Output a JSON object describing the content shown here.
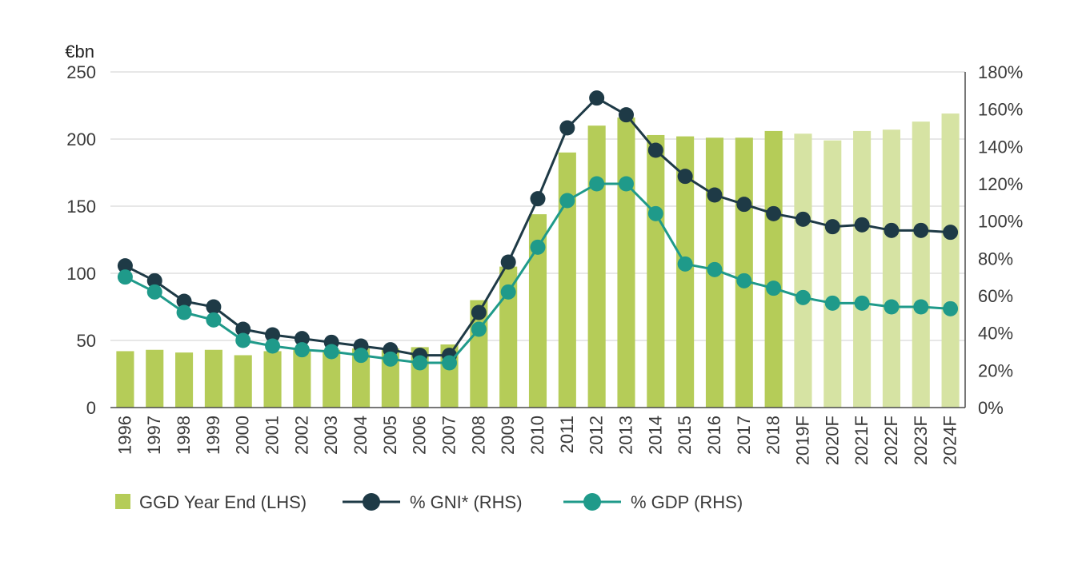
{
  "chart_data": {
    "type": "bar",
    "y_left_unit": "€bn",
    "categories": [
      "1996",
      "1997",
      "1998",
      "1999",
      "2000",
      "2001",
      "2002",
      "2003",
      "2004",
      "2005",
      "2006",
      "2007",
      "2008",
      "2009",
      "2010",
      "2011",
      "2012",
      "2013",
      "2014",
      "2015",
      "2016",
      "2017",
      "2018",
      "2019F",
      "2020F",
      "2021F",
      "2022F",
      "2023F",
      "2024F"
    ],
    "forecast_from_index": 23,
    "y_left": {
      "min": 0,
      "max": 250,
      "ticks": [
        0,
        50,
        100,
        150,
        200,
        250
      ]
    },
    "y_right": {
      "min": 0,
      "max": 180,
      "ticks": [
        0,
        20,
        40,
        60,
        80,
        100,
        120,
        140,
        160,
        180
      ],
      "tick_labels": [
        "0%",
        "20%",
        "40%",
        "60%",
        "80%",
        "100%",
        "120%",
        "140%",
        "160%",
        "180%"
      ]
    },
    "grid": true,
    "legend_position": "bottom-left",
    "series": [
      {
        "name": "GGD Year End (LHS)",
        "type": "bar",
        "axis": "left",
        "color": "#b5cc58",
        "forecast_color": "#d6e3a3",
        "values": [
          42,
          43,
          41,
          43,
          39,
          42,
          43,
          43,
          44,
          44,
          45,
          47,
          80,
          105,
          144,
          190,
          210,
          216,
          203,
          202,
          201,
          201,
          206,
          204,
          199,
          206,
          207,
          213,
          219
        ]
      },
      {
        "name": "% GNI* (RHS)",
        "type": "line",
        "axis": "right",
        "color": "#1e3a46",
        "values": [
          76,
          68,
          57,
          54,
          42,
          39,
          37,
          35,
          33,
          31,
          28,
          28,
          51,
          78,
          112,
          150,
          166,
          157,
          138,
          124,
          114,
          109,
          104,
          101,
          97,
          98,
          95,
          95,
          94
        ]
      },
      {
        "name": "% GDP (RHS)",
        "type": "line",
        "axis": "right",
        "color": "#1f9a8a",
        "values": [
          70,
          62,
          51,
          47,
          36,
          33,
          31,
          30,
          28,
          26,
          24,
          24,
          42,
          62,
          86,
          111,
          120,
          120,
          104,
          77,
          74,
          68,
          64,
          59,
          56,
          56,
          54,
          54,
          53
        ]
      }
    ]
  }
}
